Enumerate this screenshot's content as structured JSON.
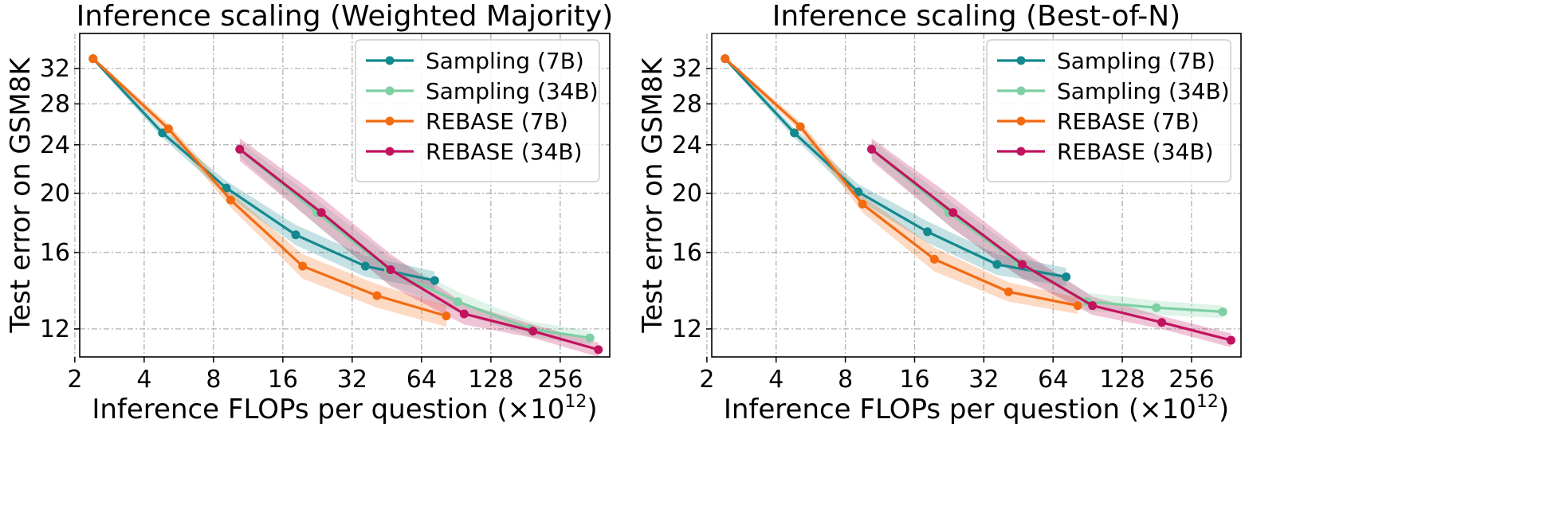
{
  "chart_data": [
    {
      "type": "line",
      "title": "Inference scaling (Weighted Majority)",
      "xlabel": "Inference FLOPs per question (×10",
      "xlabel_sup": "12",
      "xlabel_close": ")",
      "ylabel": "Test error on GSM8K",
      "xscale": "log2",
      "yscale": "log",
      "xlim": [
        2.1,
        420
      ],
      "ylim": [
        10.8,
        36.5
      ],
      "xticks": [
        2,
        4,
        8,
        16,
        32,
        64,
        128,
        256
      ],
      "xtick_labels": [
        "2",
        "4",
        "8",
        "16",
        "32",
        "64",
        "128",
        "256"
      ],
      "yticks": [
        12,
        16,
        20,
        24,
        28,
        32
      ],
      "ytick_labels": [
        "12",
        "16",
        "20",
        "24",
        "28",
        "32"
      ],
      "grid": true,
      "legend_position": "top-right",
      "series": [
        {
          "name": "Sampling (7B)",
          "color": "#13898e",
          "x": [
            2.4,
            4.8,
            9.1,
            18.2,
            36.5,
            73
          ],
          "y": [
            33.2,
            25.1,
            20.4,
            17.1,
            15.2,
            14.4
          ],
          "band": [
            0.25,
            0.45,
            0.55,
            0.65,
            0.6,
            0.5
          ]
        },
        {
          "name": "Sampling (34B)",
          "color": "#7ecfa3",
          "x": [
            10.4,
            22.5,
            46,
            92,
            190,
            345
          ],
          "y": [
            23.6,
            18.6,
            15.0,
            13.3,
            12.0,
            11.6
          ],
          "band": [
            0.7,
            0.9,
            0.8,
            0.5,
            0.35,
            0.3
          ]
        },
        {
          "name": "REBASE (7B)",
          "color": "#f26b12",
          "x": [
            2.4,
            5.1,
            9.5,
            19.5,
            41,
            82
          ],
          "y": [
            33.2,
            25.5,
            19.5,
            15.2,
            13.6,
            12.6
          ],
          "band": [
            0.25,
            0.45,
            0.55,
            0.7,
            0.6,
            0.5
          ]
        },
        {
          "name": "REBASE (34B)",
          "color": "#c2135f",
          "x": [
            10.4,
            23.5,
            47,
            98,
            195,
            375
          ],
          "y": [
            23.6,
            18.6,
            15.0,
            12.7,
            11.9,
            11.1
          ],
          "band": [
            1.0,
            1.1,
            0.9,
            0.5,
            0.3,
            0.3
          ]
        }
      ]
    },
    {
      "type": "line",
      "title": "Inference scaling (Best-of-N)",
      "xlabel": "Inference FLOPs per question (×10",
      "xlabel_sup": "12",
      "xlabel_close": ")",
      "ylabel": "Test error on GSM8K",
      "xscale": "log2",
      "yscale": "log",
      "xlim": [
        2.1,
        420
      ],
      "ylim": [
        10.8,
        36.5
      ],
      "xticks": [
        2,
        4,
        8,
        16,
        32,
        64,
        128,
        256
      ],
      "xtick_labels": [
        "2",
        "4",
        "8",
        "16",
        "32",
        "64",
        "128",
        "256"
      ],
      "yticks": [
        12,
        16,
        20,
        24,
        28,
        32
      ],
      "ytick_labels": [
        "12",
        "16",
        "20",
        "24",
        "28",
        "32"
      ],
      "grid": true,
      "legend_position": "top-right",
      "series": [
        {
          "name": "Sampling (7B)",
          "color": "#13898e",
          "x": [
            2.4,
            4.8,
            9.1,
            18.2,
            36.5,
            73
          ],
          "y": [
            33.2,
            25.1,
            20.1,
            17.3,
            15.3,
            14.6
          ],
          "band": [
            0.25,
            0.45,
            0.6,
            0.7,
            0.6,
            0.5
          ]
        },
        {
          "name": "Sampling (34B)",
          "color": "#7ecfa3",
          "x": [
            10.4,
            22.5,
            45,
            90,
            180,
            350
          ],
          "y": [
            23.6,
            18.6,
            15.4,
            13.3,
            13.0,
            12.8
          ],
          "band": [
            0.8,
            0.9,
            0.7,
            0.45,
            0.35,
            0.3
          ]
        },
        {
          "name": "REBASE (7B)",
          "color": "#f26b12",
          "x": [
            2.4,
            5.1,
            9.5,
            19.5,
            41,
            82
          ],
          "y": [
            33.2,
            25.7,
            19.2,
            15.6,
            13.8,
            13.1
          ],
          "band": [
            0.25,
            0.45,
            0.6,
            0.7,
            0.5,
            0.4
          ]
        },
        {
          "name": "REBASE (34B)",
          "color": "#c2135f",
          "x": [
            10.4,
            23.5,
            47,
            95,
            190,
            380
          ],
          "y": [
            23.6,
            18.6,
            15.3,
            13.1,
            12.3,
            11.5
          ],
          "band": [
            1.0,
            1.1,
            0.8,
            0.45,
            0.3,
            0.3
          ]
        }
      ]
    }
  ]
}
